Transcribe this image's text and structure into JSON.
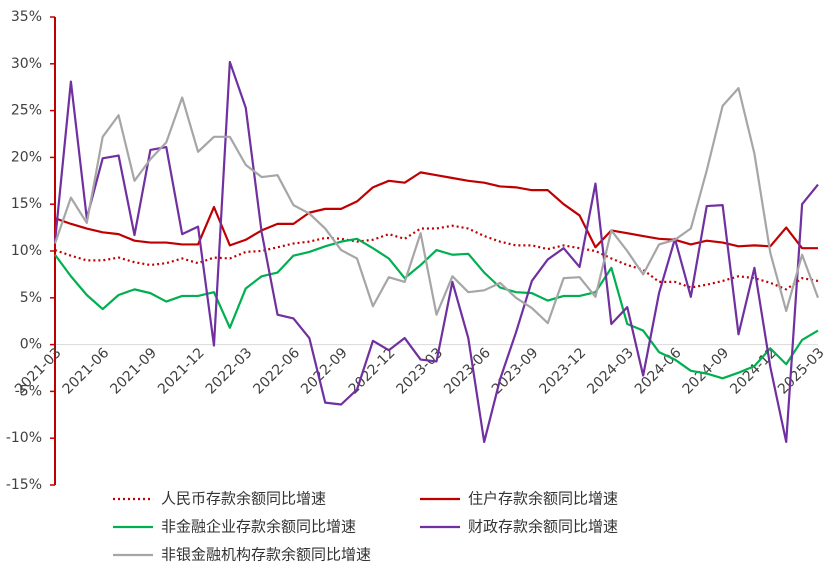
{
  "chart_data": {
    "type": "line",
    "categories": [
      "2021-03",
      null,
      null,
      "2021-06",
      null,
      null,
      "2021-09",
      null,
      null,
      "2021-12",
      null,
      null,
      "2022-03",
      null,
      null,
      "2022-06",
      null,
      null,
      "2022-09",
      null,
      null,
      "2022-12",
      null,
      null,
      "2023-03",
      null,
      null,
      "2023-06",
      null,
      null,
      "2023-09",
      null,
      null,
      "2023-12",
      null,
      null,
      "2024-03",
      null,
      null,
      "2024-06",
      null,
      null,
      "2024-09",
      null,
      null,
      "2024-12",
      null,
      null,
      "2025-03"
    ],
    "ylim": [
      -15,
      35
    ],
    "yticks": [
      {
        "value": -15,
        "label": "-15%"
      },
      {
        "value": -10,
        "label": "-10%"
      },
      {
        "value": -5,
        "label": "-5%"
      },
      {
        "value": 0,
        "label": "0%"
      },
      {
        "value": 5,
        "label": "5%"
      },
      {
        "value": 10,
        "label": "10%"
      },
      {
        "value": 15,
        "label": "15%"
      },
      {
        "value": 20,
        "label": "20%"
      },
      {
        "value": 25,
        "label": "25%"
      },
      {
        "value": 30,
        "label": "30%"
      },
      {
        "value": 35,
        "label": "35%"
      }
    ],
    "series": [
      {
        "name": "人民币存款余额同比增速",
        "color": "#c00000",
        "style": "dotted",
        "values": [
          10.1,
          9.5,
          9.0,
          9.0,
          9.3,
          8.8,
          8.5,
          8.7,
          9.2,
          8.7,
          9.3,
          9.2,
          9.9,
          10.0,
          10.4,
          10.8,
          11.0,
          11.4,
          11.3,
          11.0,
          11.2,
          11.8,
          11.3,
          12.4,
          12.4,
          12.7,
          12.4,
          11.6,
          11.0,
          10.6,
          10.6,
          10.2,
          10.6,
          10.3,
          10.0,
          9.2,
          8.5,
          8.0,
          6.7,
          6.7,
          6.1,
          6.4,
          6.8,
          7.3,
          7.1,
          6.6,
          5.9,
          7.1,
          6.8
        ]
      },
      {
        "name": "住户存款余额同比增速",
        "color": "#c00000",
        "style": "solid",
        "values": [
          13.5,
          12.9,
          12.4,
          12.0,
          11.8,
          11.1,
          10.9,
          10.9,
          10.7,
          10.7,
          14.7,
          10.6,
          11.2,
          12.2,
          12.9,
          12.9,
          14.1,
          14.5,
          14.5,
          15.3,
          16.8,
          17.5,
          17.3,
          18.4,
          18.1,
          17.8,
          17.5,
          17.3,
          16.9,
          16.8,
          16.5,
          16.5,
          15.0,
          13.8,
          10.4,
          12.2,
          11.9,
          11.6,
          11.3,
          11.2,
          10.7,
          11.1,
          10.9,
          10.5,
          10.6,
          10.5,
          12.5,
          10.3,
          10.3
        ]
      },
      {
        "name": "非金融企业存款余额同比增速",
        "color": "#00b050",
        "style": "solid",
        "values": [
          9.6,
          7.3,
          5.3,
          3.8,
          5.3,
          5.9,
          5.5,
          4.6,
          5.2,
          5.2,
          5.6,
          1.8,
          6.0,
          7.3,
          7.7,
          9.5,
          9.9,
          10.5,
          11.0,
          11.3,
          10.3,
          9.2,
          7.1,
          8.5,
          10.1,
          9.6,
          9.7,
          7.7,
          6.1,
          5.6,
          5.5,
          4.7,
          5.2,
          5.2,
          5.6,
          8.2,
          2.2,
          1.5,
          -0.8,
          -1.6,
          -2.8,
          -3.1,
          -3.6,
          -3.0,
          -2.3,
          -0.4,
          -2.1,
          0.5,
          1.5
        ]
      },
      {
        "name": "财政存款余额同比增速",
        "color": "#7030a0",
        "style": "solid",
        "values": [
          11.0,
          28.1,
          13.5,
          19.9,
          20.2,
          11.7,
          20.8,
          21.1,
          11.8,
          12.6,
          -0.1,
          30.2,
          25.3,
          12.0,
          3.2,
          2.8,
          0.7,
          -6.2,
          -6.4,
          -4.8,
          0.4,
          -0.6,
          0.7,
          -1.6,
          -1.8,
          6.7,
          0.7,
          -10.4,
          -3.7,
          1.3,
          6.8,
          9.1,
          10.3,
          8.3,
          17.2,
          2.2,
          4.0,
          -3.3,
          5.5,
          11.3,
          5.1,
          14.8,
          14.9,
          1.1,
          8.2,
          -2.4,
          -10.4,
          15.0,
          17.1
        ]
      },
      {
        "name": "非银金融机构存款余额同比增速",
        "color": "#a6a6a6",
        "style": "solid",
        "values": [
          10.8,
          15.7,
          13.0,
          22.2,
          24.5,
          17.5,
          19.8,
          21.6,
          26.4,
          20.6,
          22.2,
          22.2,
          19.2,
          17.9,
          18.1,
          14.9,
          14.0,
          12.4,
          10.1,
          9.2,
          4.1,
          7.2,
          6.7,
          11.9,
          3.2,
          7.3,
          5.6,
          5.8,
          6.6,
          5.0,
          3.9,
          2.3,
          7.1,
          7.2,
          5.1,
          12.2,
          10.0,
          7.5,
          10.7,
          11.2,
          12.4,
          18.6,
          25.5,
          27.4,
          20.4,
          9.8,
          3.6,
          9.6,
          5.0
        ]
      }
    ]
  }
}
